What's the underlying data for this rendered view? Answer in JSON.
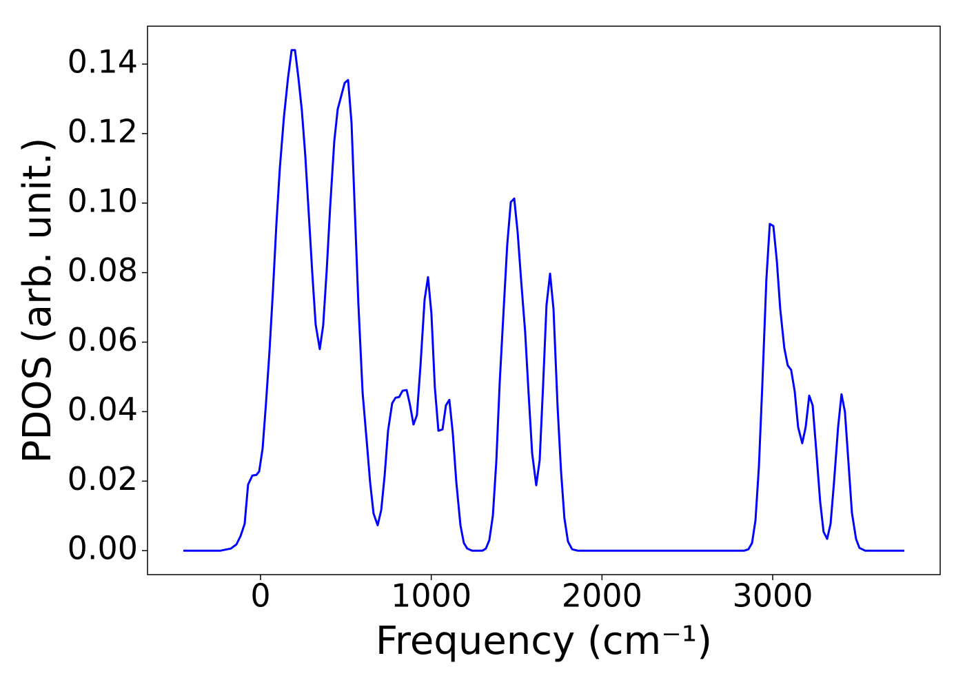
{
  "chart_data": {
    "type": "line",
    "xlabel": "Frequency (cm⁻¹)",
    "ylabel": "PDOS (arb. unit.)",
    "xlim": [
      -662,
      3981
    ],
    "ylim": [
      -0.0069,
      0.1509
    ],
    "xticks": [
      0,
      1000,
      2000,
      3000
    ],
    "yticks": [
      {
        "value": 0,
        "label": "0.00"
      },
      {
        "value": 0.02,
        "label": "0.02"
      },
      {
        "value": 0.04,
        "label": "0.04"
      },
      {
        "value": 0.06,
        "label": "0.06"
      },
      {
        "value": 0.08,
        "label": "0.08"
      },
      {
        "value": 0.1,
        "label": "0.10"
      },
      {
        "value": 0.12,
        "label": "0.12"
      },
      {
        "value": 0.14,
        "label": "0.14"
      }
    ],
    "grid": false,
    "series": [
      {
        "color": "#0000ff",
        "x": [
          -452,
          -234,
          -174,
          -141,
          -117,
          -93,
          -73,
          -48,
          -24,
          -8,
          12,
          32,
          52,
          73,
          93,
          113,
          137,
          161,
          182,
          202,
          222,
          242,
          262,
          283,
          303,
          323,
          347,
          367,
          388,
          408,
          432,
          452,
          472,
          493,
          513,
          533,
          553,
          573,
          598,
          622,
          642,
          662,
          686,
          707,
          727,
          747,
          771,
          791,
          812,
          832,
          856,
          876,
          896,
          916,
          937,
          961,
          981,
          1001,
          1021,
          1042,
          1066,
          1086,
          1106,
          1126,
          1147,
          1171,
          1191,
          1211,
          1239,
          1300,
          1320,
          1340,
          1361,
          1381,
          1401,
          1425,
          1445,
          1466,
          1486,
          1506,
          1526,
          1550,
          1570,
          1591,
          1615,
          1635,
          1655,
          1675,
          1696,
          1716,
          1740,
          1760,
          1780,
          1801,
          1825,
          1857,
          2834,
          2858,
          2879,
          2899,
          2919,
          2939,
          2963,
          2983,
          3004,
          3024,
          3044,
          3068,
          3088,
          3108,
          3129,
          3149,
          3173,
          3193,
          3214,
          3234,
          3254,
          3278,
          3298,
          3319,
          3339,
          3359,
          3383,
          3403,
          3423,
          3444,
          3464,
          3488,
          3508,
          3541,
          3771
        ],
        "values": [
          0,
          0,
          0.0006,
          0.0018,
          0.0042,
          0.0077,
          0.019,
          0.0216,
          0.0218,
          0.0228,
          0.0293,
          0.0424,
          0.057,
          0.075,
          0.094,
          0.11,
          0.1247,
          0.136,
          0.144,
          0.144,
          0.136,
          0.1267,
          0.1138,
          0.0966,
          0.08,
          0.065,
          0.058,
          0.0648,
          0.081,
          0.099,
          0.1178,
          0.127,
          0.1307,
          0.1346,
          0.1354,
          0.1231,
          0.097,
          0.0712,
          0.0454,
          0.0315,
          0.0196,
          0.0107,
          0.0073,
          0.0117,
          0.0216,
          0.0345,
          0.0424,
          0.044,
          0.0442,
          0.046,
          0.0462,
          0.0418,
          0.0363,
          0.039,
          0.0533,
          0.0722,
          0.0787,
          0.0682,
          0.047,
          0.0345,
          0.0349,
          0.0418,
          0.0434,
          0.0339,
          0.0196,
          0.0073,
          0.0022,
          0.0006,
          0,
          0,
          0.0006,
          0.003,
          0.0101,
          0.0256,
          0.0484,
          0.0702,
          0.088,
          0.1003,
          0.1013,
          0.0916,
          0.0781,
          0.0629,
          0.0454,
          0.028,
          0.0188,
          0.026,
          0.0474,
          0.0706,
          0.0797,
          0.0696,
          0.0414,
          0.023,
          0.0093,
          0.0026,
          0.0004,
          0,
          0,
          0.0004,
          0.0022,
          0.0087,
          0.024,
          0.0474,
          0.0781,
          0.094,
          0.0934,
          0.0835,
          0.0696,
          0.0583,
          0.0533,
          0.052,
          0.0458,
          0.0355,
          0.0309,
          0.0355,
          0.0446,
          0.0418,
          0.0295,
          0.0141,
          0.0054,
          0.0034,
          0.0077,
          0.0196,
          0.0355,
          0.045,
          0.04,
          0.0252,
          0.0109,
          0.0034,
          0.0008,
          0,
          0
        ]
      }
    ]
  }
}
